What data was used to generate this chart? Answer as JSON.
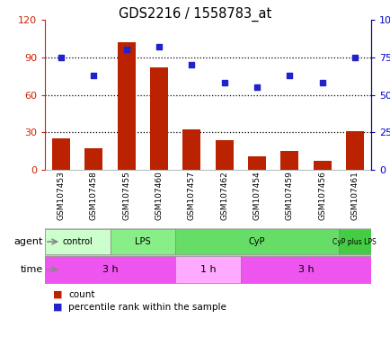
{
  "title": "GDS2216 / 1558783_at",
  "samples": [
    "GSM107453",
    "GSM107458",
    "GSM107455",
    "GSM107460",
    "GSM107457",
    "GSM107462",
    "GSM107454",
    "GSM107459",
    "GSM107456",
    "GSM107461"
  ],
  "counts": [
    25,
    17,
    102,
    82,
    32,
    24,
    11,
    15,
    7,
    31
  ],
  "percentile_ranks": [
    75,
    63,
    80,
    82,
    70,
    58,
    55,
    63,
    58,
    75
  ],
  "ylim_left": [
    0,
    120
  ],
  "ylim_right": [
    0,
    100
  ],
  "yticks_left": [
    0,
    30,
    60,
    90,
    120
  ],
  "yticks_right": [
    0,
    25,
    50,
    75,
    100
  ],
  "ytick_labels_left": [
    "0",
    "30",
    "60",
    "90",
    "120"
  ],
  "ytick_labels_right": [
    "0",
    "25",
    "50",
    "75",
    "100%"
  ],
  "bar_color": "#bb2200",
  "scatter_color": "#2222cc",
  "agent_groups": [
    {
      "label": "control",
      "start": 0,
      "end": 2,
      "color": "#ccffcc"
    },
    {
      "label": "LPS",
      "start": 2,
      "end": 4,
      "color": "#88ee88"
    },
    {
      "label": "CyP",
      "start": 4,
      "end": 9,
      "color": "#66dd66"
    },
    {
      "label": "CyP plus LPS",
      "start": 9,
      "end": 10,
      "color": "#44cc44"
    }
  ],
  "time_groups": [
    {
      "label": "3 h",
      "start": 0,
      "end": 4,
      "color": "#ee55ee"
    },
    {
      "label": "1 h",
      "start": 4,
      "end": 6,
      "color": "#ffaaff"
    },
    {
      "label": "3 h",
      "start": 6,
      "end": 10,
      "color": "#ee55ee"
    }
  ],
  "agent_label": "agent",
  "time_label": "time",
  "legend_count_label": "count",
  "legend_percentile_label": "percentile rank within the sample",
  "background_color": "#ffffff",
  "axes_color_left": "#cc2200",
  "axes_color_right": "#0000cc"
}
